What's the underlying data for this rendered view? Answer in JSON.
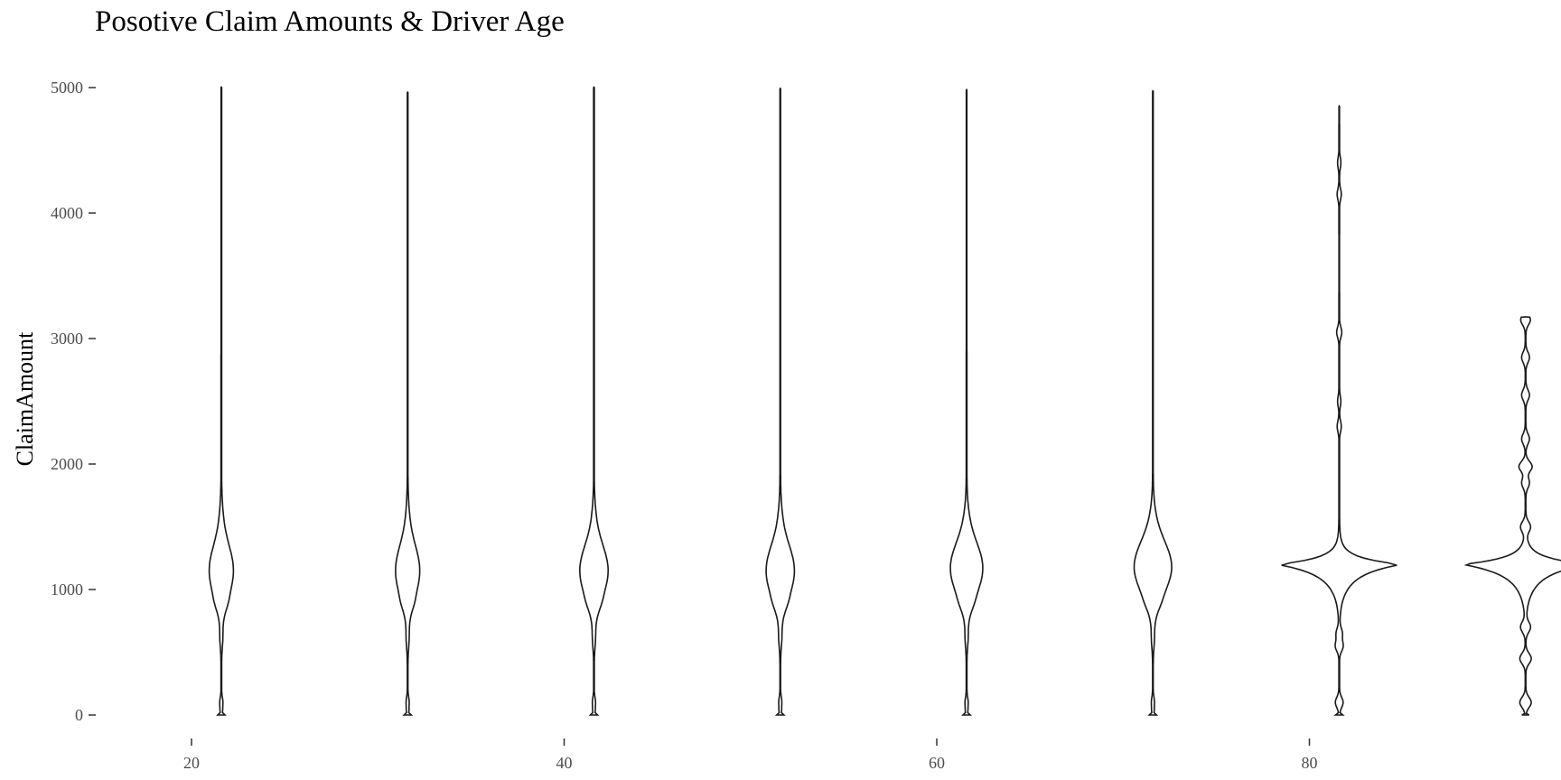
{
  "chart_data": {
    "type": "violin",
    "title": "Posotive Claim Amounts & Driver Age",
    "xlabel": "",
    "ylabel": "ClaimAmount",
    "x_ticks": [
      20,
      40,
      60,
      80
    ],
    "y_ticks": [
      0,
      1000,
      2000,
      3000,
      4000,
      5000
    ],
    "xlim": [
      20,
      92
    ],
    "ylim": [
      0,
      5000
    ],
    "grid": false,
    "legend": "none",
    "groups": [
      {
        "x": 21.6,
        "max": 5000,
        "mode": 1150,
        "width": 2.3,
        "style": "normal"
      },
      {
        "x": 31.6,
        "max": 4960,
        "mode": 1150,
        "width": 2.3,
        "style": "normal"
      },
      {
        "x": 41.6,
        "max": 5000,
        "mode": 1150,
        "width": 2.7,
        "style": "normal"
      },
      {
        "x": 51.6,
        "max": 4990,
        "mode": 1150,
        "width": 2.7,
        "style": "normal"
      },
      {
        "x": 61.6,
        "max": 4980,
        "mode": 1170,
        "width": 3.1,
        "style": "normal"
      },
      {
        "x": 71.6,
        "max": 4970,
        "mode": 1180,
        "width": 3.6,
        "style": "normal"
      },
      {
        "x": 81.6,
        "max": 4850,
        "mode": 1200,
        "width": 6.5,
        "style": "spiky"
      },
      {
        "x": 91.6,
        "max": 3170,
        "mode": 1200,
        "width": 6.6,
        "style": "spiky"
      }
    ]
  }
}
